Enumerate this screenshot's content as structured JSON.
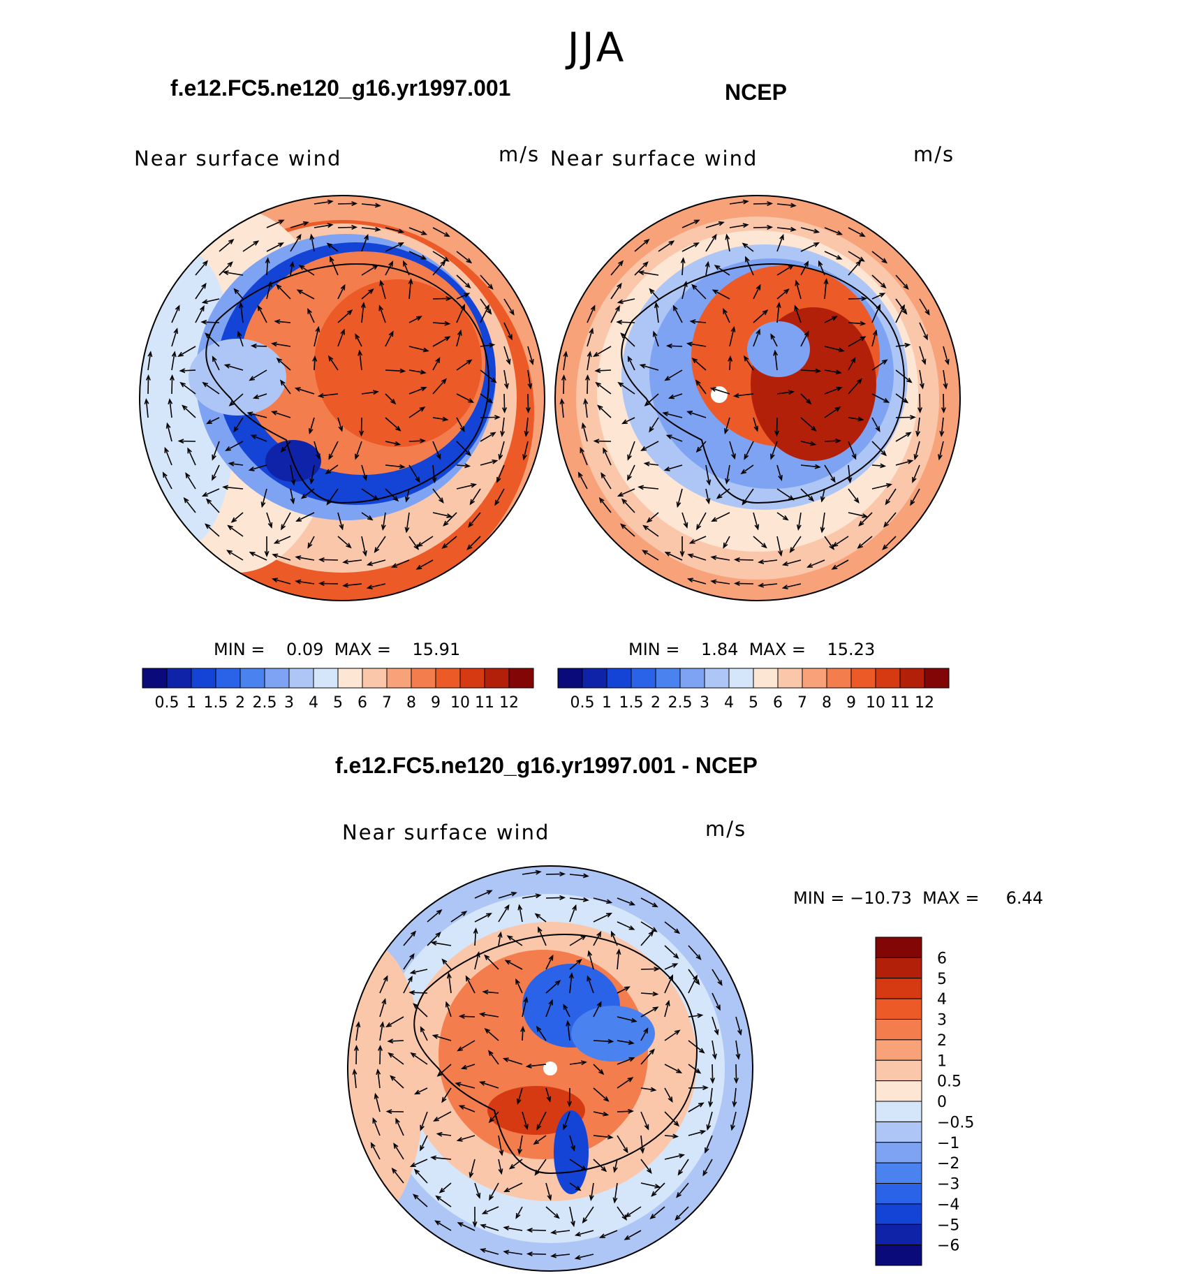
{
  "season": "JJA",
  "panels": [
    {
      "title": "f.e12.FC5.ne120_g16.yr1997.001",
      "left_label": "Near surface wind",
      "right_label": "m/s",
      "min_max": "MIN =    0.09  MAX =    15.91",
      "pattern": "model"
    },
    {
      "title": "NCEP",
      "left_label": "Near surface wind",
      "right_label": "m/s",
      "min_max": "MIN =    1.84  MAX =    15.23",
      "pattern": "obs"
    },
    {
      "title": "f.e12.FC5.ne120_g16.yr1997.001 - NCEP",
      "left_label": "Near surface wind",
      "right_label": "m/s",
      "min_max": "MIN = −10.73  MAX =     6.44",
      "pattern": "diff"
    }
  ],
  "colorbar_horizontal": {
    "labels": [
      "0.5",
      "1",
      "1.5",
      "2",
      "2.5",
      "3",
      "4",
      "5",
      "6",
      "7",
      "8",
      "9",
      "10",
      "11",
      "12"
    ],
    "colors": [
      "#0a0a7a",
      "#0f23a8",
      "#1444d6",
      "#2a63e8",
      "#4a82ef",
      "#7ea3f2",
      "#adc6f5",
      "#d6e6fa",
      "#fde6d4",
      "#fbc7aa",
      "#f8a27a",
      "#f47d4e",
      "#ec5a28",
      "#d63a12",
      "#b2200a",
      "#820606"
    ]
  },
  "colorbar_vertical": {
    "labels": [
      "6",
      "5",
      "4",
      "3",
      "2",
      "1",
      "0.5",
      "0",
      "−0.5",
      "−1",
      "−2",
      "−3",
      "−4",
      "−5",
      "−6"
    ],
    "colors": [
      "#820606",
      "#b2200a",
      "#d63a12",
      "#ec5a28",
      "#f47d4e",
      "#f8a27a",
      "#fbc7aa",
      "#fde6d4",
      "#d6e6fa",
      "#adc6f5",
      "#7ea3f2",
      "#4a82ef",
      "#2a63e8",
      "#1444d6",
      "#0f23a8",
      "#0a0a7a"
    ]
  }
}
